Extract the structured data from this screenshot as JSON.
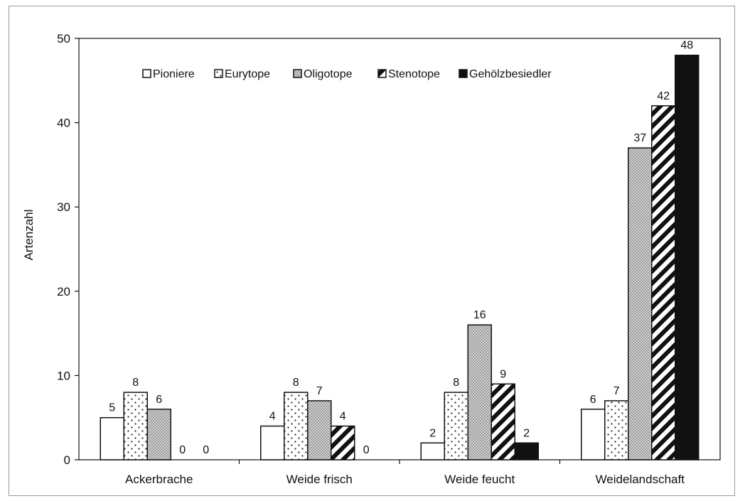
{
  "chart_data": {
    "type": "bar",
    "ylabel": "Artenzahl",
    "xlabel": "",
    "ylim": [
      0,
      50
    ],
    "yticks": [
      0,
      10,
      20,
      30,
      40,
      50
    ],
    "grid": false,
    "legend_position": "top",
    "categories": [
      "Ackerbrache",
      "Weide frisch",
      "Weide feucht",
      "Weidelandschaft"
    ],
    "series": [
      {
        "name": "Pioniere",
        "pattern": "white",
        "values": [
          5,
          4,
          2,
          6
        ]
      },
      {
        "name": "Eurytope",
        "pattern": "dots",
        "values": [
          8,
          8,
          8,
          7
        ]
      },
      {
        "name": "Oligotope",
        "pattern": "dense-dots",
        "values": [
          6,
          7,
          16,
          37
        ]
      },
      {
        "name": "Stenotope",
        "pattern": "diagonal",
        "values": [
          0,
          4,
          9,
          42
        ]
      },
      {
        "name": "Gehölzbesiedler",
        "pattern": "black",
        "values": [
          0,
          0,
          2,
          48
        ]
      }
    ]
  }
}
